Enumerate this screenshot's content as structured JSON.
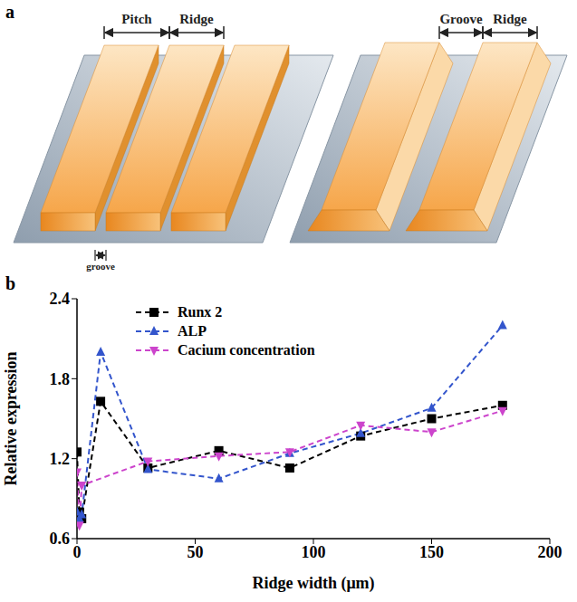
{
  "diagram": {
    "letter": "a",
    "left": {
      "pitch": "Pitch",
      "ridge": "Ridge",
      "groove": "groove"
    },
    "right": {
      "groove": "Groove",
      "ridge": "Ridge"
    }
  },
  "chart_data": {
    "letter": "b",
    "type": "line",
    "xlabel": "Ridge width (μm)",
    "ylabel": "Relative expression",
    "xlim": [
      0,
      200
    ],
    "xticks": [
      0,
      50,
      100,
      150,
      200
    ],
    "ylim": [
      0.6,
      2.4
    ],
    "yticks": [
      0.6,
      1.2,
      1.8,
      2.4
    ],
    "legend": "upper left",
    "series": [
      {
        "name": "Runx 2",
        "color": "#000000",
        "marker": "square",
        "line_style": "dashed",
        "x": [
          0,
          1,
          2,
          10,
          30,
          60,
          90,
          120,
          150,
          180
        ],
        "values": [
          1.25,
          0.8,
          0.75,
          1.63,
          1.13,
          1.26,
          1.13,
          1.37,
          1.5,
          1.6
        ]
      },
      {
        "name": "ALP",
        "color": "#3355cc",
        "marker": "triangle",
        "line_style": "dashed",
        "x": [
          0,
          1,
          2,
          10,
          30,
          60,
          90,
          120,
          150,
          180
        ],
        "values": [
          0.8,
          0.75,
          0.78,
          2.0,
          1.12,
          1.05,
          1.24,
          1.39,
          1.58,
          2.2
        ]
      },
      {
        "name": "Cacium concentration",
        "color": "#cc44cc",
        "marker": "triangle-down",
        "line_style": "dashed",
        "x": [
          0,
          1,
          2,
          30,
          60,
          90,
          120,
          150,
          180
        ],
        "values": [
          1.1,
          0.7,
          1.0,
          1.18,
          1.22,
          1.25,
          1.45,
          1.4,
          1.56
        ]
      }
    ]
  }
}
